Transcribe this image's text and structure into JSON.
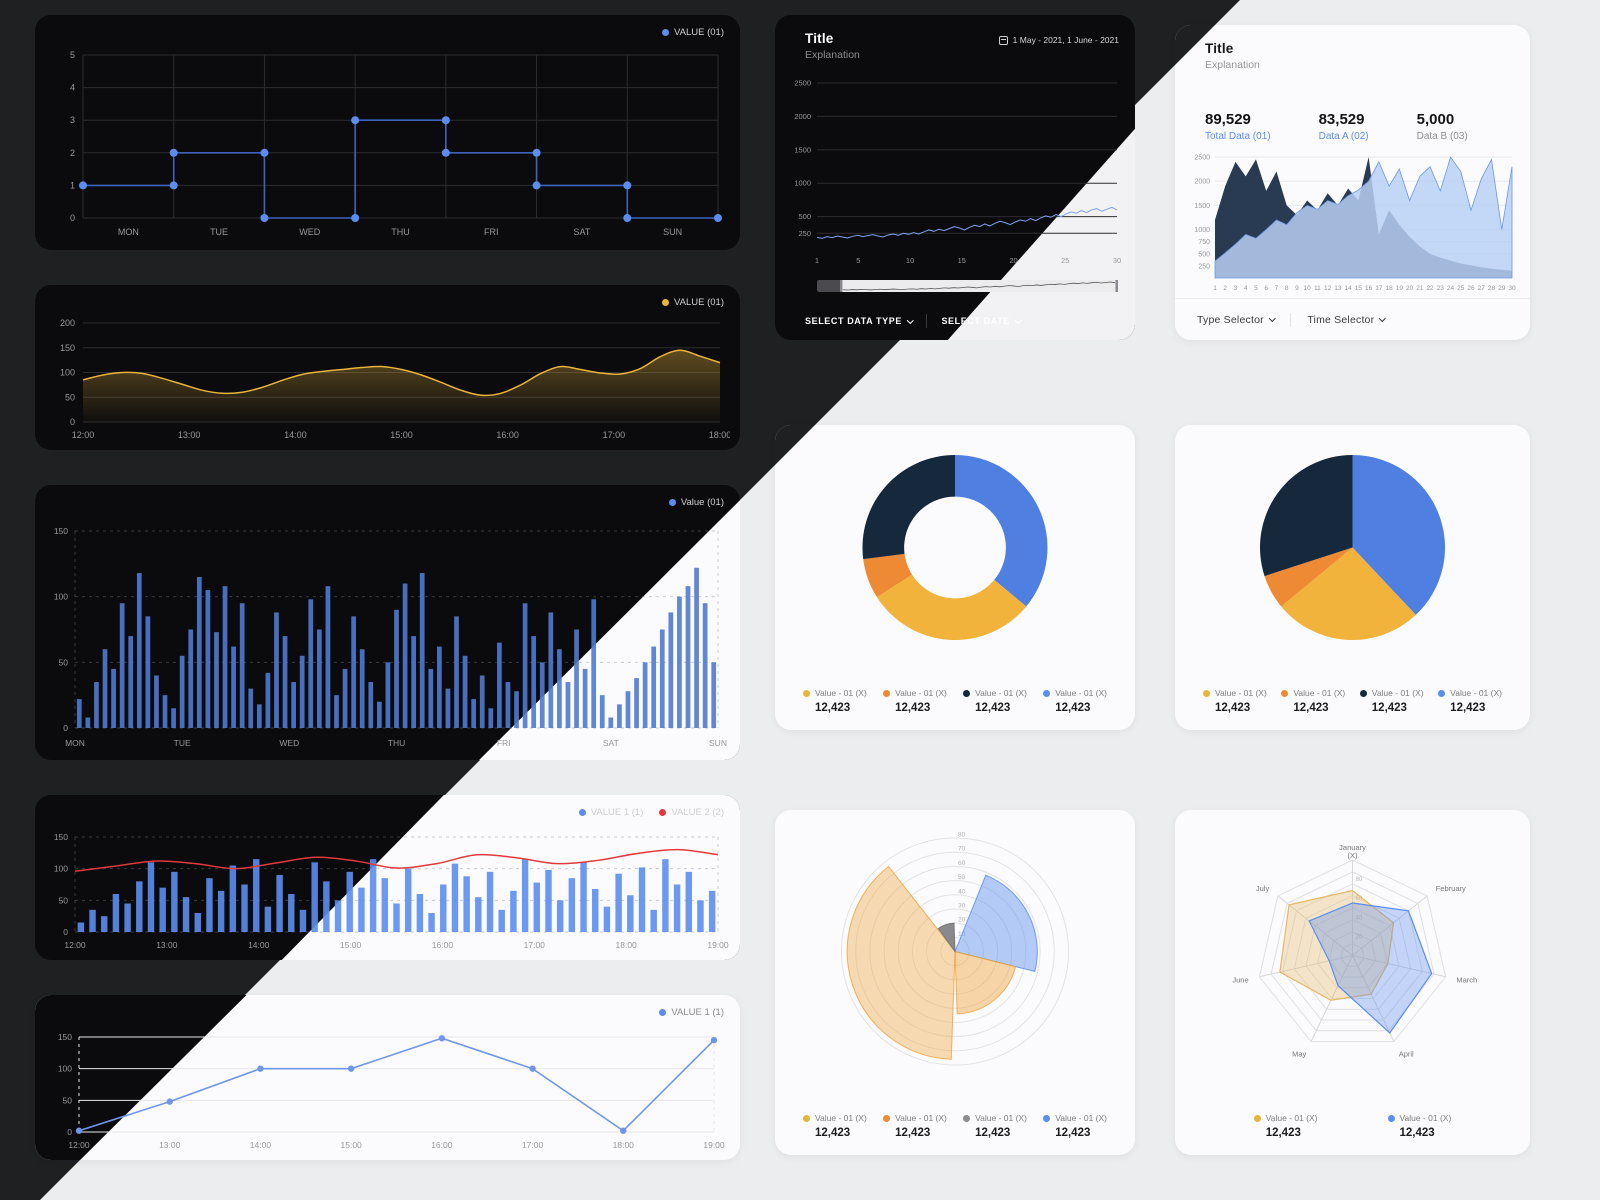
{
  "theme": {
    "accent_blue": "#5b8def",
    "accent_yellow": "#e9b43c",
    "accent_orange": "#ed8a33",
    "accent_navy": "#16283c",
    "accent_red": "#e0393e",
    "dark_bg": "#1f2022",
    "dark_card": "#0b0b0d",
    "light_card": "#fbfbfd"
  },
  "panels": {
    "timeseries_dark": {
      "title": "Title",
      "subtitle": "Explanation",
      "date_range": "1 May - 2021, 1 June - 2021",
      "selectors": [
        "SELECT DATA TYPE",
        "SELECT DATE"
      ]
    },
    "timeseries_light": {
      "title": "Title",
      "subtitle": "Explanation",
      "stats": [
        {
          "value": "89,529",
          "label": "Total Data (01)",
          "color": "#5b8def"
        },
        {
          "value": "83,529",
          "label": "Data A (02)",
          "color": "#5b8def"
        },
        {
          "value": "5,000",
          "label": "Data B (03)",
          "color": "#8e8e93"
        }
      ],
      "selectors": [
        "Type Selector",
        "Time Selector"
      ]
    }
  },
  "chart_data": [
    {
      "id": "step-line",
      "type": "line",
      "variant": "step",
      "theme": "dark",
      "categories": [
        "MON",
        "TUE",
        "WED",
        "THU",
        "FRI",
        "SAT",
        "SUN"
      ],
      "values": [
        1,
        2,
        0,
        3,
        2,
        1,
        0
      ],
      "ylim": [
        0,
        5
      ],
      "yticks": [
        0,
        1,
        2,
        3,
        4,
        5
      ],
      "color": "#5b8def",
      "line_color": "#3e63bb",
      "legend": [
        {
          "label": "VALUE (01)",
          "color": "#5b8def"
        }
      ]
    },
    {
      "id": "area-yellow",
      "type": "area",
      "theme": "dark",
      "categories": [
        "12:00",
        "13:00",
        "14:00",
        "15:00",
        "16:00",
        "17:00",
        "18:00"
      ],
      "values": [
        85,
        95,
        100,
        98,
        88,
        76,
        64,
        58,
        60,
        70,
        84,
        96,
        102,
        106,
        110,
        112,
        106,
        95,
        80,
        64,
        54,
        58,
        75,
        98,
        112,
        106,
        99,
        97,
        108,
        132,
        145,
        133,
        120
      ],
      "ylim": [
        0,
        200
      ],
      "yticks": [
        0,
        50,
        100,
        150,
        200
      ],
      "color": "#e9b43c",
      "legend": [
        {
          "label": "VALUE (01)",
          "color": "#e9b43c"
        }
      ]
    },
    {
      "id": "bars-week",
      "type": "bar",
      "theme": "split",
      "categories": [
        "MON",
        "TUE",
        "WED",
        "THU",
        "FRI",
        "SAT",
        "SUN"
      ],
      "values": [
        22,
        8,
        35,
        60,
        45,
        95,
        70,
        118,
        85,
        40,
        25,
        15,
        55,
        75,
        115,
        105,
        73,
        108,
        62,
        95,
        30,
        18,
        42,
        88,
        70,
        35,
        55,
        98,
        75,
        108,
        25,
        45,
        85,
        60,
        35,
        20,
        50,
        90,
        110,
        70,
        118,
        45,
        62,
        30,
        85,
        55,
        22,
        40,
        15,
        65,
        35,
        28,
        95,
        70,
        50,
        88,
        60,
        35,
        75,
        45,
        98,
        25,
        8,
        18,
        28,
        38,
        50,
        62,
        75,
        88,
        100,
        108,
        122,
        95,
        50
      ],
      "ylim": [
        0,
        150
      ],
      "yticks": [
        0,
        50,
        100,
        150
      ],
      "color": "#4f79d2",
      "legend": [
        {
          "label": "Value (01)",
          "color": "#5b8def"
        }
      ]
    },
    {
      "id": "bars-plus-line",
      "type": "bar",
      "variant": "bar-line",
      "theme": "split",
      "categories": [
        "12:00",
        "13:00",
        "14:00",
        "15:00",
        "16:00",
        "17:00",
        "18:00",
        "19:00"
      ],
      "series": [
        {
          "name": "VALUE 1 (1)",
          "type": "bar",
          "color": "#5b8def",
          "values": [
            15,
            35,
            25,
            60,
            45,
            80,
            110,
            70,
            95,
            55,
            30,
            85,
            65,
            105,
            75,
            115,
            40,
            90,
            60,
            35,
            110,
            80,
            50,
            95,
            70,
            115,
            85,
            45,
            100,
            60,
            30,
            75,
            108,
            88,
            55,
            95,
            35,
            65,
            115,
            78,
            98,
            50,
            85,
            110,
            68,
            40,
            92,
            58,
            102,
            35,
            115,
            75,
            95,
            50,
            65
          ]
        },
        {
          "name": "VALUE 2 (2)",
          "type": "line",
          "color": "#e0393e",
          "values": [
            96,
            104,
            112,
            108,
            100,
            109,
            118,
            112,
            101,
            108,
            122,
            117,
            108,
            113,
            124,
            130,
            122
          ]
        }
      ],
      "ylim": [
        0,
        150
      ],
      "yticks": [
        0,
        50,
        100,
        150
      ],
      "legend": [
        {
          "label": "VALUE 1 (1)",
          "color": "#5b8def"
        },
        {
          "label": "VALUE 2 (2)",
          "color": "#e0393e"
        }
      ]
    },
    {
      "id": "line-light",
      "type": "line",
      "theme": "light",
      "categories": [
        "12:00",
        "13:00",
        "14:00",
        "15:00",
        "16:00",
        "17:00",
        "18:00",
        "19:00"
      ],
      "values": [
        2,
        48,
        100,
        100,
        148,
        100,
        2,
        145
      ],
      "ylim": [
        0,
        150
      ],
      "yticks": [
        0,
        50,
        100,
        150
      ],
      "color": "#6f96e8",
      "legend": [
        {
          "label": "VALUE 1 (1)",
          "color": "#5b8def"
        }
      ]
    },
    {
      "id": "brush-line",
      "type": "line",
      "variant": "brush",
      "theme": "dark",
      "x_ticks": [
        1,
        5,
        10,
        15,
        20,
        25,
        30
      ],
      "x_range": [
        1,
        30
      ],
      "values": [
        190,
        175,
        200,
        185,
        210,
        195,
        180,
        205,
        220,
        200,
        215,
        230,
        210,
        195,
        225,
        240,
        220,
        250,
        235,
        260,
        240,
        270,
        300,
        280,
        310,
        290,
        320,
        350,
        330,
        300,
        340,
        370,
        350,
        390,
        360,
        400,
        430,
        410,
        380,
        420,
        450,
        430,
        470,
        440,
        480,
        510,
        490,
        530,
        500,
        540,
        570,
        550,
        590,
        560,
        600,
        620,
        580,
        610,
        640,
        600
      ],
      "ylim": [
        0,
        2500
      ],
      "yticks": [
        250,
        500,
        1000,
        1500,
        2000,
        2500
      ],
      "color": "#7fa3ef",
      "legend": []
    },
    {
      "id": "dual-area",
      "type": "area",
      "variant": "dual-area",
      "theme": "light",
      "x_ticks": [
        1,
        2,
        3,
        4,
        5,
        6,
        7,
        8,
        9,
        10,
        11,
        12,
        13,
        14,
        15,
        16,
        17,
        18,
        19,
        20,
        21,
        22,
        23,
        24,
        25,
        26,
        27,
        28,
        29,
        30
      ],
      "series": [
        {
          "name": "Data A (02)",
          "color": "#1d3049",
          "values": [
            1200,
            1900,
            2400,
            2100,
            2450,
            1800,
            2200,
            1500,
            1300,
            1600,
            1400,
            1750,
            1500,
            1850,
            1600,
            2500,
            900,
            1400,
            1100,
            850,
            650,
            500,
            420,
            360,
            300,
            260,
            220,
            190,
            170,
            150
          ]
        },
        {
          "name": "Data B (03)",
          "color": "#b9d0f4",
          "values": [
            350,
            520,
            700,
            900,
            820,
            1000,
            1200,
            1100,
            1350,
            1500,
            1420,
            1600,
            1520,
            1700,
            1820,
            2000,
            2400,
            1900,
            2250,
            1600,
            2100,
            2300,
            1800,
            2500,
            2200,
            1400,
            2050,
            2450,
            1000,
            2300
          ]
        }
      ],
      "ylim": [
        0,
        2500
      ],
      "yticks": [
        250,
        500,
        750,
        1000,
        1500,
        2000,
        2500
      ],
      "legend": []
    },
    {
      "id": "donut",
      "type": "pie",
      "variant": "donut",
      "theme": "light",
      "slices": [
        {
          "color": "#4e7fe1",
          "value": 36
        },
        {
          "color": "#f2b33d",
          "value": 30
        },
        {
          "color": "#ed8a33",
          "value": 7
        },
        {
          "color": "#16283c",
          "value": 27
        }
      ],
      "legend": [
        {
          "label": "Value - 01 (X)",
          "value": "12,423",
          "color": "#e9b43c"
        },
        {
          "label": "Value - 01 (X)",
          "value": "12,423",
          "color": "#ed8a33"
        },
        {
          "label": "Value - 01 (X)",
          "value": "12,423",
          "color": "#16283c"
        },
        {
          "label": "Value - 01 (X)",
          "value": "12,423",
          "color": "#5b8def"
        }
      ]
    },
    {
      "id": "pie",
      "type": "pie",
      "theme": "light",
      "slices": [
        {
          "color": "#4e7fe1",
          "value": 38
        },
        {
          "color": "#f2b33d",
          "value": 26
        },
        {
          "color": "#ed8a33",
          "value": 6
        },
        {
          "color": "#16283c",
          "value": 30
        }
      ],
      "legend": [
        {
          "label": "Value - 01 (X)",
          "value": "12,423",
          "color": "#e9b43c"
        },
        {
          "label": "Value - 01 (X)",
          "value": "12,423",
          "color": "#ed8a33"
        },
        {
          "label": "Value - 01 (X)",
          "value": "12,423",
          "color": "#16283c"
        },
        {
          "label": "Value - 01 (X)",
          "value": "12,423",
          "color": "#5b8def"
        }
      ]
    },
    {
      "id": "polar-area",
      "type": "pie",
      "variant": "polar",
      "theme": "light",
      "rings": [
        10,
        20,
        30,
        40,
        50,
        60,
        70,
        80
      ],
      "sectors": [
        {
          "from": 22,
          "to": 104,
          "r": 58,
          "color": "#5b8def",
          "opacity": 0.45
        },
        {
          "from": 104,
          "to": 178,
          "r": 44,
          "color": "#f0a43f",
          "opacity": 0.45
        },
        {
          "from": 182,
          "to": 322,
          "r": 76,
          "color": "#f0a43f",
          "opacity": 0.4
        },
        {
          "from": 324,
          "to": 358,
          "r": 20,
          "color": "#6e6e72",
          "opacity": 0.8
        }
      ],
      "legend": [
        {
          "label": "Value - 01 (X)",
          "value": "12,423",
          "color": "#e9b43c"
        },
        {
          "label": "Value - 01 (X)",
          "value": "12,423",
          "color": "#ed8a33"
        },
        {
          "label": "Value - 01 (X)",
          "value": "12,423",
          "color": "#8c8c90"
        },
        {
          "label": "Value - 01 (X)",
          "value": "12,423",
          "color": "#5b8def"
        }
      ]
    },
    {
      "id": "radar",
      "type": "line",
      "variant": "radar",
      "theme": "light",
      "axes": [
        "January\n(X)",
        "February",
        "March",
        "April",
        "May",
        "June",
        "July"
      ],
      "ticks": [
        20,
        40,
        60,
        80
      ],
      "series": [
        {
          "name": "Value - 01 (X)",
          "color": "#e5b864",
          "values": [
            68,
            55,
            38,
            45,
            52,
            78,
            85
          ]
        },
        {
          "name": "Value - 01 (X)",
          "color": "#5b8def",
          "values": [
            55,
            75,
            85,
            90,
            35,
            25,
            58
          ]
        }
      ],
      "legend": [
        {
          "label": "Value - 01 (X)",
          "value": "12,423",
          "color": "#e9b43c"
        },
        {
          "label": "Value - 01 (X)",
          "value": "12,423",
          "color": "#5b8def"
        }
      ]
    }
  ]
}
